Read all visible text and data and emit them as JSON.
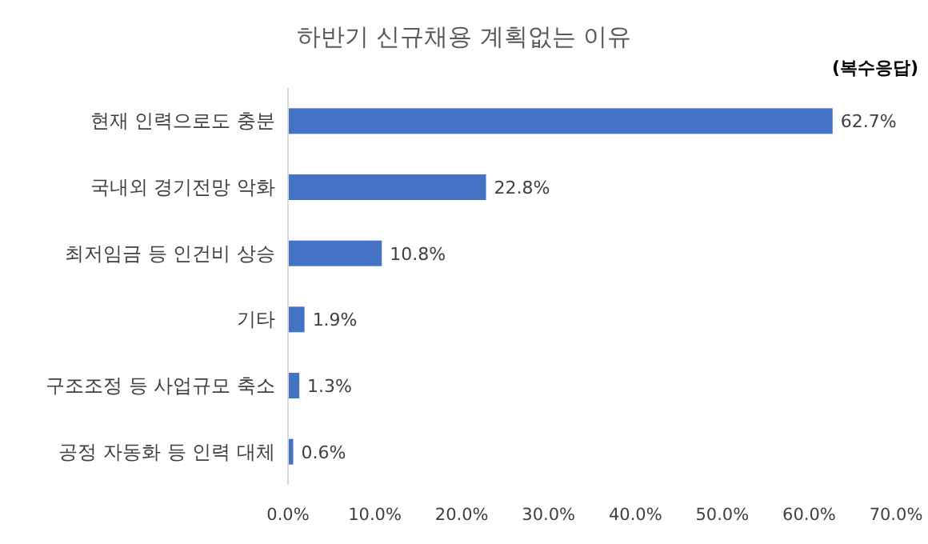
{
  "chart_data": {
    "type": "bar",
    "orientation": "horizontal",
    "title": "하반기 신규채용 계획없는 이유",
    "annotations": [
      "(복수응답)"
    ],
    "categories": [
      "현재 인력으로도 충분",
      "국내외 경기전망 악화",
      "최저임금 등 인건비 상승",
      "기타",
      "구조조정 등 사업규모 축소",
      "공정 자동화 등 인력 대체"
    ],
    "values": [
      62.7,
      22.8,
      10.8,
      1.9,
      1.3,
      0.6
    ],
    "value_labels": [
      "62.7%",
      "22.8%",
      "10.8%",
      "1.9%",
      "1.3%",
      "0.6%"
    ],
    "color": "#4472c4",
    "xlim": [
      0,
      70
    ],
    "xticks": [
      {
        "value": 0,
        "label": "0.0%"
      },
      {
        "value": 10,
        "label": "10.0%"
      },
      {
        "value": 20,
        "label": "20.0%"
      },
      {
        "value": 30,
        "label": "30.0%"
      },
      {
        "value": 40,
        "label": "40.0%"
      },
      {
        "value": 50,
        "label": "50.0%"
      },
      {
        "value": 60,
        "label": "60.0%"
      },
      {
        "value": 70,
        "label": "70.0%"
      }
    ]
  }
}
